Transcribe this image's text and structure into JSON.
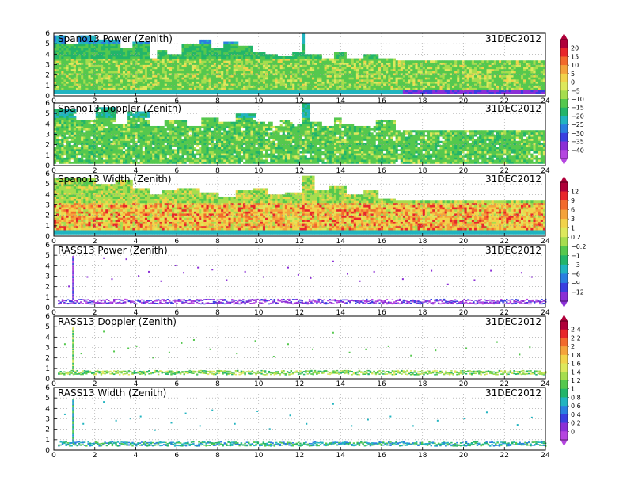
{
  "chart_data": [
    {
      "type": "heatmap",
      "title": "Spano13 Power (Zenith)",
      "date": "31DEC2012",
      "xlim": [
        0,
        24
      ],
      "ylim": [
        0,
        6
      ],
      "xticks": [
        "0",
        "2",
        "4",
        "6",
        "8",
        "10",
        "12",
        "14",
        "16",
        "18",
        "20",
        "22",
        "24"
      ],
      "yticks": [
        "0",
        "1",
        "2",
        "3",
        "4",
        "5",
        "6"
      ],
      "grid": true,
      "colorbar_group": 0,
      "band": [
        0.4,
        3.3
      ],
      "value_range": [
        -40,
        20
      ],
      "profile_top": [
        [
          0,
          5.8
        ],
        [
          0.5,
          5.0
        ],
        [
          1.2,
          5.8
        ],
        [
          2.0,
          5.4
        ],
        [
          3.2,
          4.6
        ],
        [
          3.8,
          5.2
        ],
        [
          4.6,
          3.6
        ],
        [
          5.0,
          4.4
        ],
        [
          5.5,
          3.9
        ],
        [
          6.2,
          5.0
        ],
        [
          7.0,
          5.4
        ],
        [
          7.6,
          4.6
        ],
        [
          8.2,
          5.2
        ],
        [
          9.0,
          4.8
        ],
        [
          9.6,
          4.2
        ],
        [
          10.2,
          4.0
        ],
        [
          10.8,
          3.7
        ],
        [
          11.6,
          4.1
        ],
        [
          12.0,
          5.9
        ],
        [
          12.2,
          3.9
        ],
        [
          13.0,
          3.5
        ],
        [
          13.6,
          4.1
        ],
        [
          14.2,
          3.6
        ],
        [
          15.0,
          3.9
        ],
        [
          15.8,
          3.5
        ],
        [
          16.6,
          3.4
        ],
        [
          17.2,
          3.3
        ],
        [
          24,
          3.3
        ]
      ]
    },
    {
      "type": "heatmap",
      "title": "Spano13 Doppler (Zenith)",
      "date": "31DEC2012",
      "xlim": [
        0,
        24
      ],
      "ylim": [
        0,
        6
      ],
      "xticks": [
        "0",
        "2",
        "4",
        "6",
        "8",
        "10",
        "12",
        "14",
        "16",
        "18",
        "20",
        "22",
        "24"
      ],
      "yticks": [
        "0",
        "1",
        "2",
        "3",
        "4",
        "5",
        "6"
      ],
      "grid": true,
      "colorbar_group": 0,
      "band": [
        0.4,
        3.3
      ],
      "value_range": [
        -40,
        20
      ],
      "profile_top": [
        [
          0,
          5.4
        ],
        [
          1.0,
          4.4
        ],
        [
          2.0,
          5.5
        ],
        [
          3.0,
          3.9
        ],
        [
          3.6,
          5.1
        ],
        [
          4.6,
          3.8
        ],
        [
          5.4,
          4.3
        ],
        [
          6.4,
          3.7
        ],
        [
          7.2,
          4.5
        ],
        [
          8.0,
          4.2
        ],
        [
          8.8,
          4.9
        ],
        [
          9.8,
          4.1
        ],
        [
          10.6,
          3.8
        ],
        [
          11.0,
          4.3
        ],
        [
          11.6,
          3.9
        ],
        [
          12.0,
          5.9
        ],
        [
          12.4,
          4.2
        ],
        [
          13.0,
          3.8
        ],
        [
          13.6,
          4.5
        ],
        [
          14.0,
          4.0
        ],
        [
          14.6,
          3.7
        ],
        [
          15.6,
          4.4
        ],
        [
          16.6,
          3.3
        ],
        [
          24,
          3.3
        ]
      ]
    },
    {
      "type": "heatmap",
      "title": "Spano13 Width (Zenith)",
      "date": "31DEC2012",
      "xlim": [
        0,
        24
      ],
      "ylim": [
        0,
        6
      ],
      "xticks": [
        "0",
        "2",
        "4",
        "6",
        "8",
        "10",
        "12",
        "14",
        "16",
        "18",
        "20",
        "22",
        "24"
      ],
      "yticks": [
        "0",
        "1",
        "2",
        "3",
        "4",
        "5",
        "6"
      ],
      "grid": true,
      "colorbar_group": 1,
      "band": [
        0.5,
        3.3
      ],
      "value_range": [
        -12,
        12
      ],
      "profile_top": [
        [
          0,
          5.6
        ],
        [
          1.0,
          5.5
        ],
        [
          2.0,
          5.0
        ],
        [
          3.0,
          5.4
        ],
        [
          3.8,
          4.6
        ],
        [
          4.6,
          3.9
        ],
        [
          5.2,
          4.4
        ],
        [
          6.0,
          4.6
        ],
        [
          7.0,
          4.2
        ],
        [
          8.0,
          3.8
        ],
        [
          8.8,
          4.3
        ],
        [
          9.6,
          4.5
        ],
        [
          10.4,
          4.0
        ],
        [
          11.2,
          4.1
        ],
        [
          12.0,
          5.8
        ],
        [
          12.6,
          4.3
        ],
        [
          13.4,
          4.8
        ],
        [
          14.2,
          4.0
        ],
        [
          15.0,
          4.4
        ],
        [
          15.8,
          3.6
        ],
        [
          16.6,
          3.4
        ],
        [
          24,
          3.3
        ]
      ]
    },
    {
      "type": "scatter",
      "title": "RASS13 Power (Zenith)",
      "date": "31DEC2012",
      "xlim": [
        0,
        24
      ],
      "ylim": [
        0,
        6
      ],
      "xticks": [
        "0",
        "2",
        "4",
        "6",
        "8",
        "10",
        "12",
        "14",
        "16",
        "18",
        "20",
        "22",
        "24"
      ],
      "yticks": [
        "0",
        "1",
        "2",
        "3",
        "4",
        "5",
        "6"
      ],
      "grid": true,
      "colorbar_group": 1,
      "band": [
        0.4,
        0.85
      ],
      "value_range": [
        -12,
        -9
      ],
      "spike": {
        "x": 0.9,
        "y_top": 5.0
      },
      "points": [
        [
          0.7,
          2.1
        ],
        [
          1.6,
          3.0
        ],
        [
          2.4,
          4.8
        ],
        [
          2.8,
          2.8
        ],
        [
          3.5,
          4.7
        ],
        [
          4.1,
          3.1
        ],
        [
          4.6,
          3.5
        ],
        [
          5.2,
          2.6
        ],
        [
          5.9,
          4.1
        ],
        [
          6.3,
          3.4
        ],
        [
          7.0,
          3.9
        ],
        [
          7.7,
          3.7
        ],
        [
          8.4,
          2.7
        ],
        [
          9.3,
          3.5
        ],
        [
          10.2,
          3.0
        ],
        [
          11.4,
          3.9
        ],
        [
          11.9,
          3.2
        ],
        [
          12.5,
          2.9
        ],
        [
          13.6,
          4.5
        ],
        [
          14.3,
          3.3
        ],
        [
          14.9,
          2.6
        ],
        [
          15.6,
          3.5
        ],
        [
          17.0,
          2.8
        ],
        [
          18.4,
          3.6
        ],
        [
          19.2,
          2.3
        ],
        [
          20.5,
          2.7
        ],
        [
          21.3,
          3.6
        ],
        [
          22.8,
          3.4
        ],
        [
          23.3,
          3.0
        ]
      ]
    },
    {
      "type": "scatter",
      "title": "RASS13 Doppler (Zenith)",
      "date": "31DEC2012",
      "xlim": [
        0,
        24
      ],
      "ylim": [
        0,
        6
      ],
      "xticks": [
        "0",
        "2",
        "4",
        "6",
        "8",
        "10",
        "12",
        "14",
        "16",
        "18",
        "20",
        "22",
        "24"
      ],
      "yticks": [
        "0",
        "1",
        "2",
        "3",
        "4",
        "5",
        "6"
      ],
      "grid": true,
      "colorbar_group": 2,
      "band": [
        0.45,
        0.85
      ],
      "value_range": [
        0.8,
        1.6
      ],
      "spike": {
        "x": 0.9,
        "y_top": 5.0
      },
      "points": [
        [
          0.5,
          3.4
        ],
        [
          1.3,
          2.5
        ],
        [
          2.4,
          4.6
        ],
        [
          2.9,
          2.7
        ],
        [
          3.6,
          3.0
        ],
        [
          4.0,
          3.2
        ],
        [
          4.8,
          2.1
        ],
        [
          5.6,
          2.6
        ],
        [
          6.2,
          3.5
        ],
        [
          6.8,
          3.8
        ],
        [
          7.6,
          2.9
        ],
        [
          8.9,
          2.5
        ],
        [
          9.8,
          3.7
        ],
        [
          10.7,
          2.2
        ],
        [
          11.4,
          3.4
        ],
        [
          12.6,
          2.9
        ],
        [
          13.6,
          4.5
        ],
        [
          14.4,
          2.6
        ],
        [
          15.2,
          2.9
        ],
        [
          16.3,
          3.2
        ],
        [
          17.4,
          2.3
        ],
        [
          18.6,
          2.8
        ],
        [
          20.1,
          3.0
        ],
        [
          21.6,
          3.6
        ],
        [
          22.7,
          2.4
        ],
        [
          23.2,
          3.1
        ]
      ]
    },
    {
      "type": "scatter",
      "title": "RASS13 Width (Zenith)",
      "date": "31DEC2012",
      "xlim": [
        0,
        24
      ],
      "ylim": [
        0,
        6
      ],
      "xticks": [
        "0",
        "2",
        "4",
        "6",
        "8",
        "10",
        "12",
        "14",
        "16",
        "18",
        "20",
        "22",
        "24"
      ],
      "yticks": [
        "0",
        "1",
        "2",
        "3",
        "4",
        "5",
        "6"
      ],
      "grid": true,
      "colorbar_group": 2,
      "band": [
        0.45,
        0.85
      ],
      "value_range": [
        0.2,
        1.4
      ],
      "spike": {
        "x": 0.9,
        "y_top": 5.0
      },
      "points": [
        [
          0.5,
          3.5
        ],
        [
          1.4,
          2.6
        ],
        [
          2.4,
          4.7
        ],
        [
          3.0,
          2.9
        ],
        [
          3.7,
          3.1
        ],
        [
          4.2,
          3.3
        ],
        [
          4.9,
          2.0
        ],
        [
          5.7,
          2.7
        ],
        [
          6.4,
          3.6
        ],
        [
          7.1,
          2.4
        ],
        [
          7.7,
          3.9
        ],
        [
          8.8,
          2.6
        ],
        [
          9.9,
          3.8
        ],
        [
          10.5,
          2.1
        ],
        [
          11.5,
          3.4
        ],
        [
          12.3,
          2.6
        ],
        [
          13.6,
          4.5
        ],
        [
          14.5,
          2.4
        ],
        [
          15.3,
          3.0
        ],
        [
          16.4,
          3.3
        ],
        [
          17.5,
          2.4
        ],
        [
          18.7,
          2.9
        ],
        [
          20.0,
          3.1
        ],
        [
          21.1,
          3.7
        ],
        [
          22.6,
          2.5
        ],
        [
          23.3,
          3.2
        ]
      ]
    }
  ],
  "colorbars": [
    {
      "labels": [
        "20",
        "15",
        "10",
        "5",
        "0",
        "−5",
        "−10",
        "−15",
        "−20",
        "−25",
        "−30",
        "−35",
        "−40"
      ],
      "colors": [
        "#b0003a",
        "#e8262b",
        "#f26a2c",
        "#f4a33b",
        "#f1d34a",
        "#dde85c",
        "#a6dd4e",
        "#55c84e",
        "#22b56a",
        "#21b4c0",
        "#2a7fe0",
        "#3a3fe0",
        "#8b2fd6",
        "#b545e0"
      ]
    },
    {
      "labels": [
        "12",
        "9",
        "6",
        "3",
        "1",
        "0.2",
        "−0.2",
        "−1",
        "−3",
        "−6",
        "−9",
        "−12"
      ],
      "colors": [
        "#b0003a",
        "#e8262b",
        "#f26a2c",
        "#f4a33b",
        "#f1d34a",
        "#dde85c",
        "#a6dd4e",
        "#55c84e",
        "#22b56a",
        "#21b4c0",
        "#2a7fe0",
        "#3a3fe0",
        "#8b2fd6"
      ]
    },
    {
      "labels": [
        "2.4",
        "2.2",
        "2",
        "1.8",
        "1.6",
        "1.4",
        "1.2",
        "1",
        "0.8",
        "0.6",
        "0.4",
        "0.2",
        "0"
      ],
      "colors": [
        "#b0003a",
        "#e8262b",
        "#f26a2c",
        "#f4a33b",
        "#f1d34a",
        "#dde85c",
        "#a6dd4e",
        "#55c84e",
        "#22b56a",
        "#21b4c0",
        "#2a7fe0",
        "#3a3fe0",
        "#8b2fd6",
        "#b545e0"
      ]
    }
  ]
}
